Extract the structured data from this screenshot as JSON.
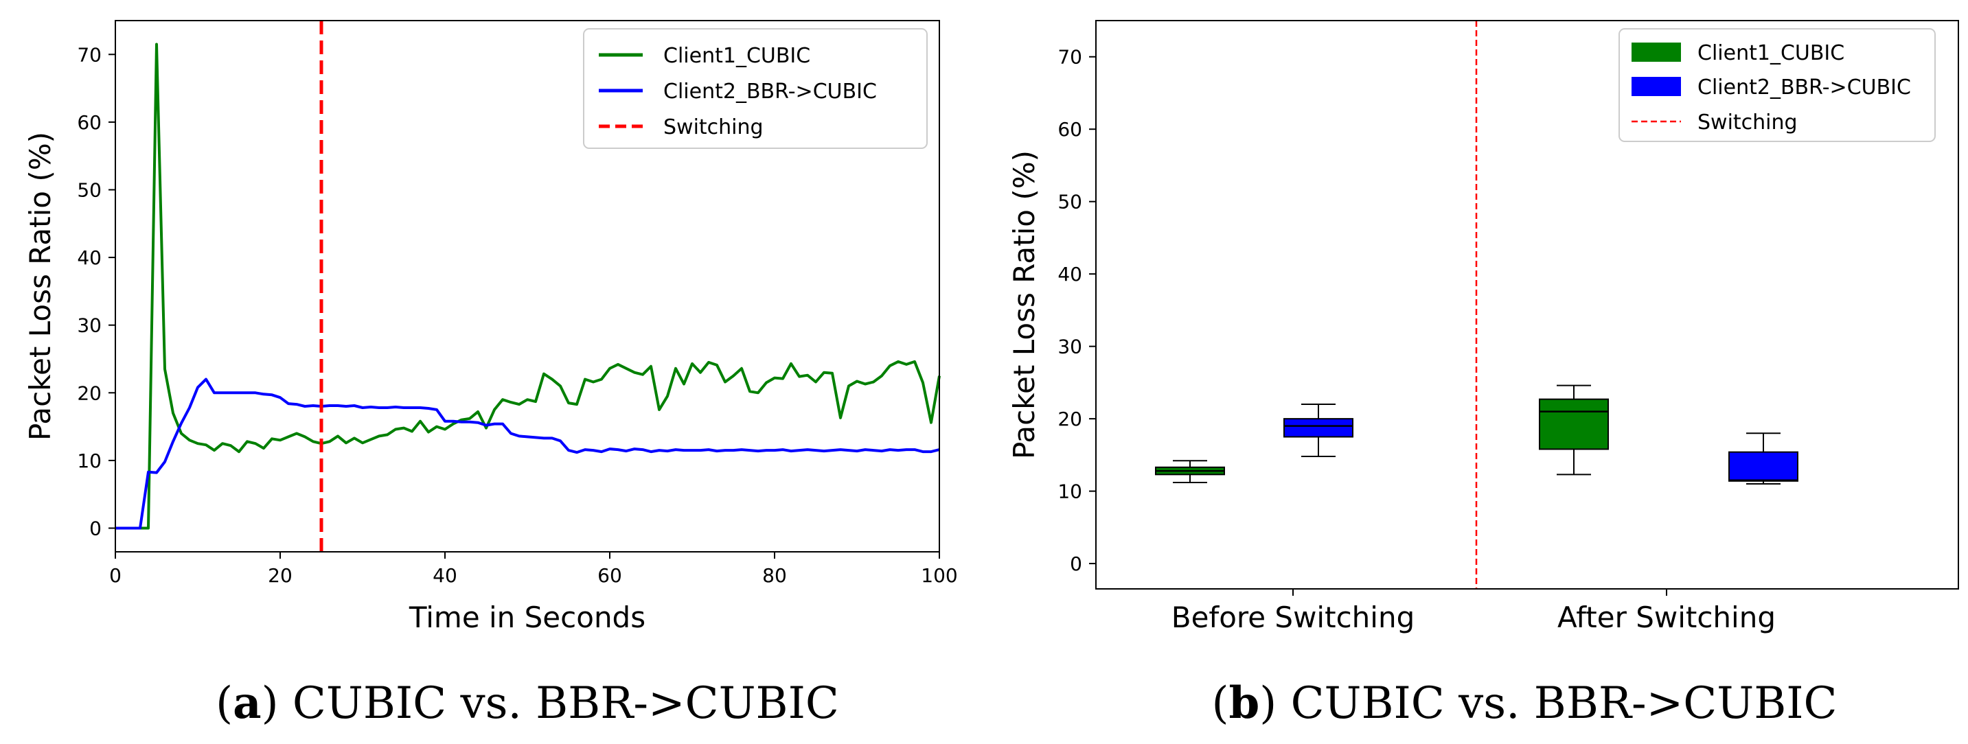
{
  "chart_data": [
    {
      "type": "line",
      "caption_letter": "a",
      "caption_text": "CUBIC vs. BBR->CUBIC",
      "xlabel": "Time in Seconds",
      "ylabel": "Packet Loss Ratio (%)",
      "xlim": [
        0,
        100
      ],
      "ylim": [
        -3.5,
        75
      ],
      "xticks": [
        0,
        20,
        40,
        60,
        80,
        100
      ],
      "yticks": [
        0,
        10,
        20,
        30,
        40,
        50,
        60,
        70
      ],
      "legend_position": "top-right",
      "switch_x": 25,
      "series": [
        {
          "name": "Client1_CUBIC",
          "color": "#008000",
          "x": [
            0,
            1,
            2,
            3,
            4,
            5,
            6,
            7,
            8,
            9,
            10,
            11,
            12,
            13,
            14,
            15,
            16,
            17,
            18,
            19,
            20,
            21,
            22,
            23,
            24,
            25,
            26,
            27,
            28,
            29,
            30,
            31,
            32,
            33,
            34,
            35,
            36,
            37,
            38,
            39,
            40,
            41,
            42,
            43,
            44,
            45,
            46,
            47,
            48,
            49,
            50,
            51,
            52,
            53,
            54,
            55,
            56,
            57,
            58,
            59,
            60,
            61,
            62,
            63,
            64,
            65,
            66,
            67,
            68,
            69,
            70,
            71,
            72,
            73,
            74,
            75,
            76,
            77,
            78,
            79,
            80,
            81,
            82,
            83,
            84,
            85,
            86,
            87,
            88,
            89,
            90,
            91,
            92,
            93,
            94,
            95,
            96,
            97,
            98,
            99,
            100
          ],
          "values": [
            0,
            0,
            0,
            0,
            0,
            71.5,
            23.5,
            17,
            14,
            13,
            12.5,
            12.3,
            11.5,
            12.5,
            12.2,
            11.3,
            12.8,
            12.5,
            11.8,
            13.2,
            13,
            13.5,
            14,
            13.5,
            12.8,
            12.5,
            12.8,
            13.6,
            12.6,
            13.3,
            12.6,
            13.1,
            13.6,
            13.8,
            14.6,
            14.8,
            14.3,
            15.8,
            14.2,
            15,
            14.6,
            15.4,
            16,
            16.2,
            17.2,
            14.8,
            17.5,
            19,
            18.6,
            18.3,
            19,
            18.7,
            22.8,
            22,
            21,
            18.5,
            18.3,
            22,
            21.6,
            22,
            23.6,
            24.2,
            23.6,
            23,
            22.7,
            23.9,
            17.5,
            19.5,
            23.6,
            21.3,
            24.3,
            23,
            24.5,
            24.1,
            21.6,
            22.5,
            23.6,
            20.2,
            20,
            21.5,
            22.2,
            22.1,
            24.3,
            22.4,
            22.6,
            21.6,
            23,
            22.9,
            16.3,
            21,
            21.7,
            21.3,
            21.6,
            22.5,
            24,
            24.6,
            24.2,
            24.6,
            21.5,
            15.6,
            22.5
          ]
        },
        {
          "name": "Client2_BBR->CUBIC",
          "color": "#0000ff",
          "x": [
            0,
            1,
            2,
            3,
            4,
            5,
            6,
            7,
            8,
            9,
            10,
            11,
            12,
            13,
            14,
            15,
            16,
            17,
            18,
            19,
            20,
            21,
            22,
            23,
            24,
            25,
            26,
            27,
            28,
            29,
            30,
            31,
            32,
            33,
            34,
            35,
            36,
            37,
            38,
            39,
            40,
            41,
            42,
            43,
            44,
            45,
            46,
            47,
            48,
            49,
            50,
            51,
            52,
            53,
            54,
            55,
            56,
            57,
            58,
            59,
            60,
            61,
            62,
            63,
            64,
            65,
            66,
            67,
            68,
            69,
            70,
            71,
            72,
            73,
            74,
            75,
            76,
            77,
            78,
            79,
            80,
            81,
            82,
            83,
            84,
            85,
            86,
            87,
            88,
            89,
            90,
            91,
            92,
            93,
            94,
            95,
            96,
            97,
            98,
            99,
            100
          ],
          "values": [
            0,
            0,
            0,
            0,
            8.3,
            8.2,
            9.8,
            12.8,
            15.5,
            17.8,
            20.8,
            22,
            20,
            20,
            20,
            20,
            20,
            20,
            19.8,
            19.7,
            19.3,
            18.4,
            18.3,
            18,
            18.1,
            18,
            18.1,
            18.1,
            18,
            18.1,
            17.8,
            17.9,
            17.8,
            17.8,
            17.9,
            17.8,
            17.8,
            17.8,
            17.7,
            17.5,
            15.8,
            15.8,
            15.7,
            15.7,
            15.6,
            15.2,
            15.4,
            15.4,
            14,
            13.6,
            13.5,
            13.4,
            13.3,
            13.3,
            12.9,
            11.5,
            11.2,
            11.6,
            11.5,
            11.3,
            11.7,
            11.6,
            11.4,
            11.7,
            11.6,
            11.3,
            11.5,
            11.4,
            11.6,
            11.5,
            11.5,
            11.5,
            11.6,
            11.4,
            11.5,
            11.5,
            11.6,
            11.5,
            11.4,
            11.5,
            11.5,
            11.6,
            11.4,
            11.5,
            11.6,
            11.5,
            11.4,
            11.5,
            11.6,
            11.5,
            11.4,
            11.6,
            11.5,
            11.4,
            11.6,
            11.5,
            11.6,
            11.6,
            11.3,
            11.3,
            11.6
          ]
        },
        {
          "name": "Switching",
          "color": "#ff0000"
        }
      ]
    },
    {
      "type": "box",
      "caption_letter": "b",
      "caption_text": "CUBIC vs. BBR->CUBIC",
      "xlabel": "",
      "ylabel": "Packet Loss Ratio (%)",
      "ylim": [
        -3.5,
        75
      ],
      "yticks": [
        0,
        10,
        20,
        30,
        40,
        50,
        60,
        70
      ],
      "categories": [
        "Before Switching",
        "After Switching"
      ],
      "legend_position": "top-right",
      "series": [
        {
          "name": "Client1_CUBIC",
          "color": "#008000",
          "boxes": [
            {
              "min": 11.2,
              "q1": 12.3,
              "median": 12.8,
              "q3": 13.3,
              "max": 14.2
            },
            {
              "min": 12.3,
              "q1": 15.8,
              "median": 21.0,
              "q3": 22.7,
              "max": 24.6
            }
          ]
        },
        {
          "name": "Client2_BBR->CUBIC",
          "color": "#0000ff",
          "boxes": [
            {
              "min": 14.8,
              "q1": 17.5,
              "median": 19.0,
              "q3": 20.0,
              "max": 22.0
            },
            {
              "min": 11.0,
              "q1": 11.4,
              "median": 11.5,
              "q3": 15.4,
              "max": 18.0
            }
          ]
        },
        {
          "name": "Switching",
          "color": "#ff0000"
        }
      ]
    }
  ]
}
